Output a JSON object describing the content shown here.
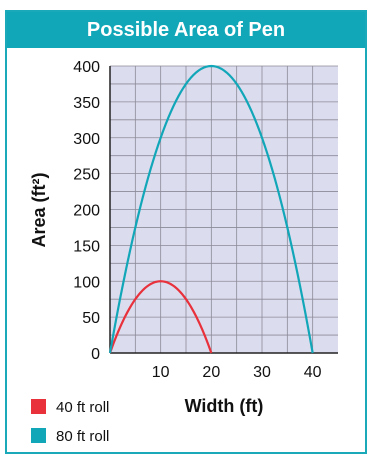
{
  "chart_data": {
    "type": "line",
    "title": "Possible Area of Pen",
    "xlabel": "Width (ft)",
    "ylabel": "Area (ft²)",
    "xlim": [
      0,
      45
    ],
    "ylim": [
      0,
      400
    ],
    "x_ticks": [
      "10",
      "20",
      "30",
      "40"
    ],
    "y_ticks": [
      "0",
      "50",
      "100",
      "150",
      "200",
      "250",
      "300",
      "350",
      "400"
    ],
    "grid": true,
    "legend": "bottom-left",
    "series": [
      {
        "name": "40 ft roll",
        "color": "#e8313b",
        "x": [
          0,
          2,
          4,
          6,
          8,
          10,
          12,
          14,
          16,
          18,
          20
        ],
        "y": [
          0,
          36,
          64,
          84,
          96,
          100,
          96,
          84,
          64,
          36,
          0
        ]
      },
      {
        "name": "80 ft roll",
        "color": "#12a7b8",
        "x": [
          0,
          4,
          8,
          12,
          16,
          20,
          24,
          28,
          32,
          36,
          40
        ],
        "y": [
          0,
          144,
          256,
          336,
          384,
          400,
          384,
          336,
          256,
          144,
          0
        ]
      }
    ]
  }
}
